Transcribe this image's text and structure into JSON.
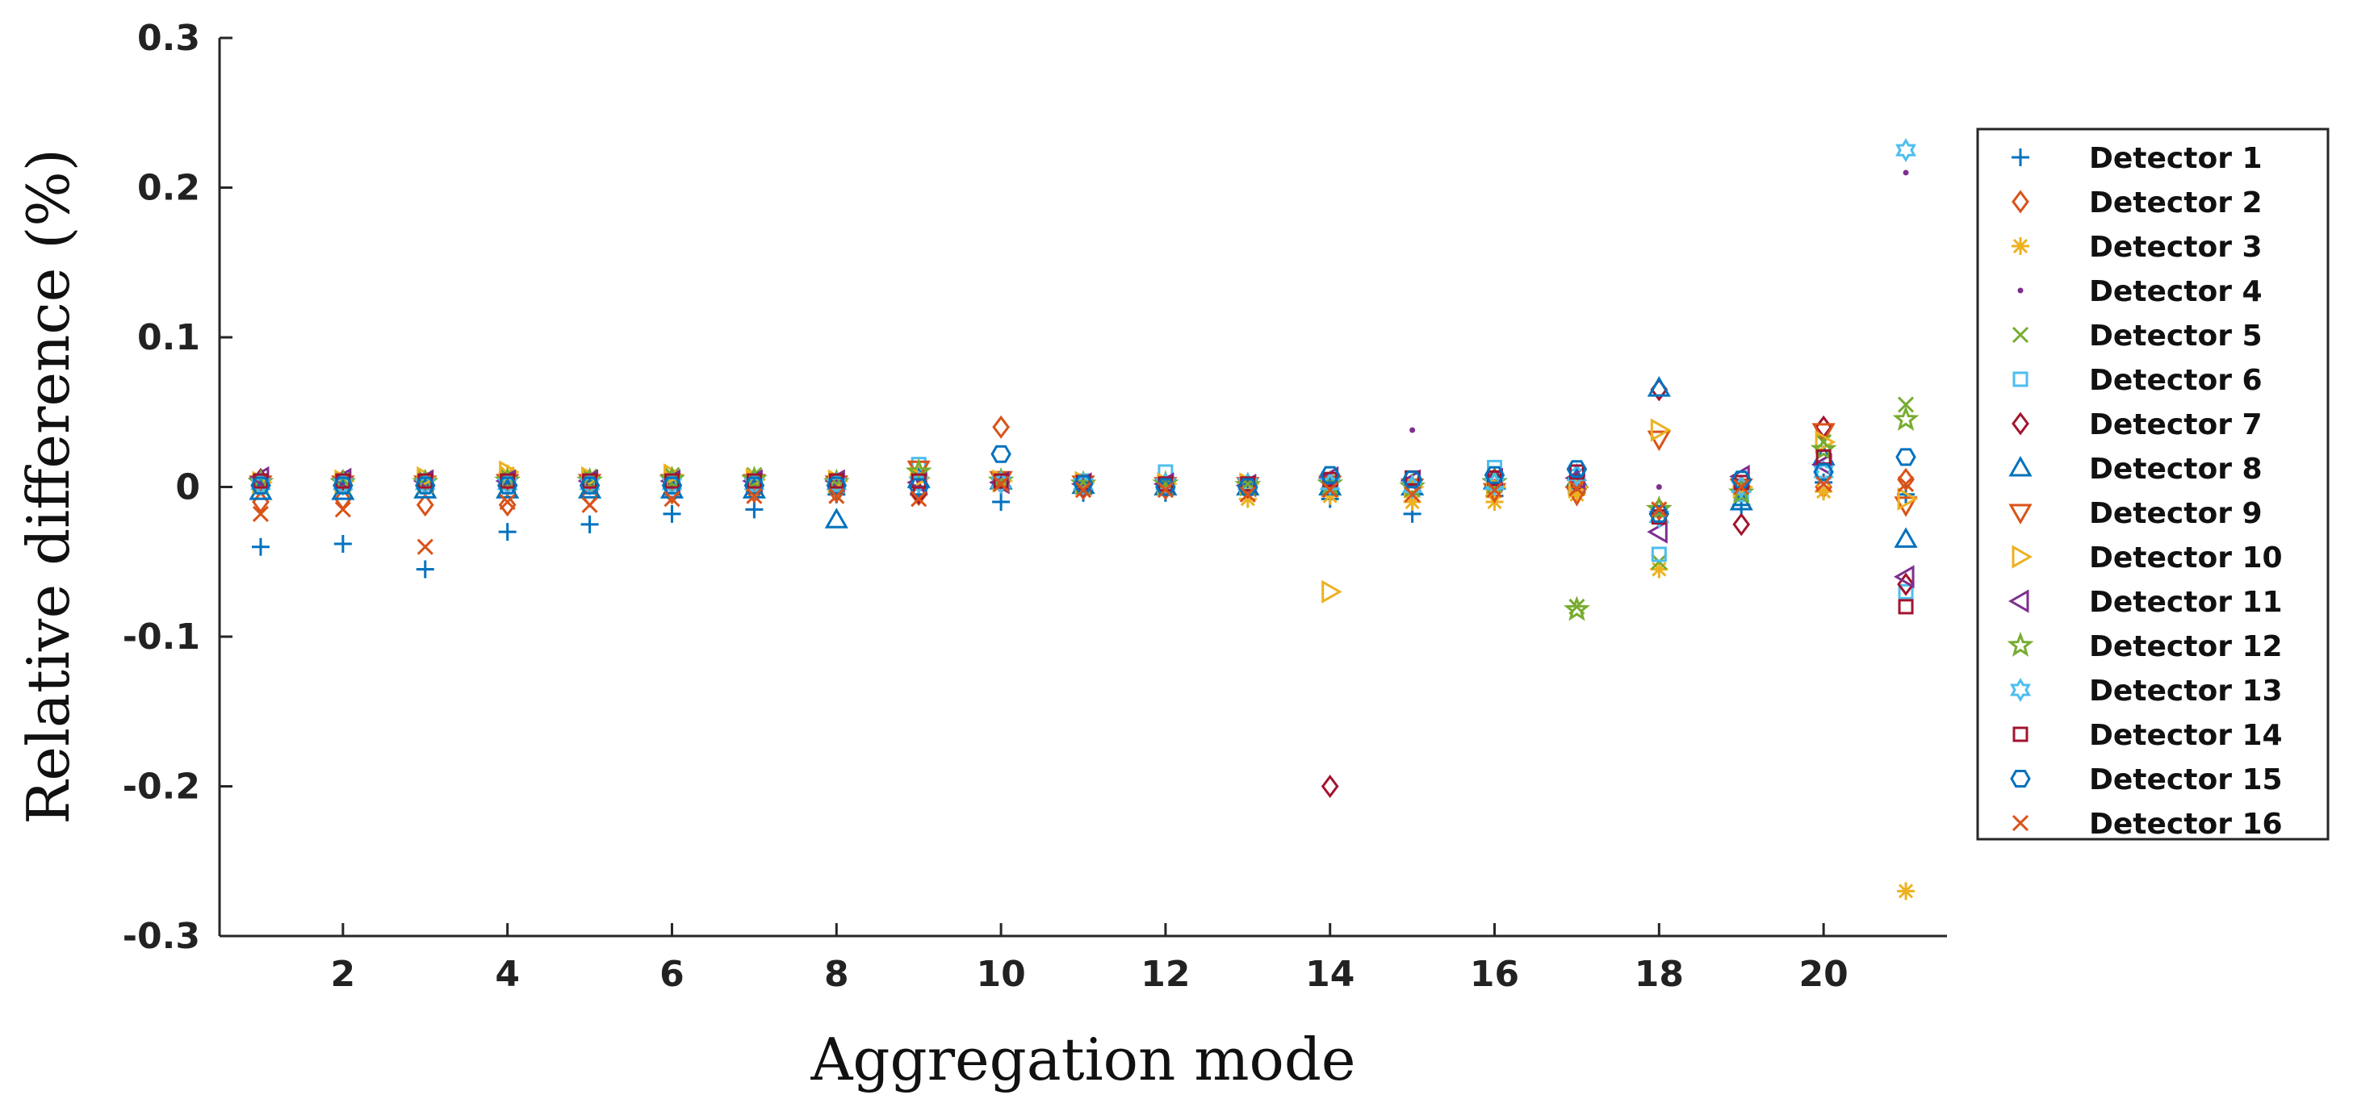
{
  "chart_data": {
    "type": "scatter",
    "xlabel": "Aggregation mode",
    "ylabel": "Relative difference (%)",
    "xlim": [
      0.5,
      21.5
    ],
    "ylim": [
      -0.3,
      0.3
    ],
    "x_ticks": [
      2,
      4,
      6,
      8,
      10,
      12,
      14,
      16,
      18,
      20
    ],
    "x_tick_labels": [
      "2",
      "4",
      "6",
      "8",
      "10",
      "12",
      "14",
      "16",
      "18",
      "20"
    ],
    "y_ticks": [
      -0.3,
      -0.2,
      -0.1,
      0,
      0.1,
      0.2,
      0.3
    ],
    "y_tick_labels": [
      "-0.3",
      "-0.2",
      "-0.1",
      "0",
      "0.1",
      "0.2",
      "0.3"
    ],
    "grid": false,
    "legend_position": "right",
    "x": [
      1,
      2,
      3,
      4,
      5,
      6,
      7,
      8,
      9,
      10,
      11,
      12,
      13,
      14,
      15,
      16,
      17,
      18,
      19,
      20,
      21
    ],
    "series": [
      {
        "name": "Detector 1",
        "marker": "plus",
        "color": "#0072BD",
        "values": [
          -0.04,
          -0.038,
          -0.055,
          -0.03,
          -0.025,
          -0.018,
          -0.015,
          -0.005,
          -0.005,
          -0.01,
          -0.004,
          -0.004,
          -0.004,
          -0.008,
          -0.018,
          -0.006,
          -0.004,
          -0.018,
          -0.012,
          0.003,
          -0.005
        ]
      },
      {
        "name": "Detector 2",
        "marker": "diamond",
        "color": "#D95319",
        "values": [
          -0.01,
          -0.008,
          -0.012,
          -0.012,
          -0.006,
          -0.004,
          -0.003,
          -0.003,
          -0.005,
          0.04,
          -0.001,
          -0.001,
          -0.001,
          0.0,
          0.0,
          -0.002,
          0.0,
          -0.015,
          0.0,
          0.0,
          0.005
        ]
      },
      {
        "name": "Detector 3",
        "marker": "asterisk",
        "color": "#EDB120",
        "values": [
          0.002,
          0.003,
          0.005,
          0.009,
          0.005,
          0.006,
          0.006,
          0.004,
          0.008,
          0.004,
          0.002,
          0.002,
          -0.008,
          -0.006,
          -0.01,
          -0.01,
          -0.005,
          -0.055,
          0.0,
          -0.003,
          -0.27
        ]
      },
      {
        "name": "Detector 4",
        "marker": "dot",
        "color": "#7E2F8E",
        "values": [
          0.002,
          0.003,
          0.003,
          0.003,
          0.003,
          0.003,
          0.003,
          0.003,
          0.004,
          0.004,
          0.002,
          0.002,
          0.002,
          0.003,
          0.038,
          0.003,
          0.003,
          0.0,
          0.003,
          0.004,
          0.21
        ]
      },
      {
        "name": "Detector 5",
        "marker": "x",
        "color": "#77AC30",
        "values": [
          0.004,
          0.005,
          0.006,
          0.007,
          0.007,
          0.008,
          0.008,
          0.002,
          0.009,
          0.005,
          0.003,
          0.002,
          0.002,
          0.004,
          0.002,
          0.003,
          -0.08,
          -0.05,
          -0.005,
          0.03,
          0.055
        ]
      },
      {
        "name": "Detector 6",
        "marker": "square",
        "color": "#4DBEEE",
        "values": [
          0.002,
          0.002,
          0.003,
          0.003,
          0.003,
          0.003,
          0.002,
          0.002,
          0.015,
          0.004,
          0.004,
          0.01,
          0.002,
          0.003,
          0.0,
          0.013,
          0.003,
          -0.045,
          -0.005,
          0.01,
          -0.07
        ]
      },
      {
        "name": "Detector 7",
        "marker": "diamond",
        "color": "#A2142F",
        "values": [
          0.005,
          0.004,
          0.003,
          0.004,
          0.003,
          0.003,
          0.003,
          0.002,
          -0.004,
          0.003,
          0.001,
          0.001,
          0.0,
          -0.2,
          0.0,
          0.005,
          0.003,
          0.065,
          -0.025,
          0.04,
          -0.065
        ]
      },
      {
        "name": "Detector 8",
        "marker": "triangle-up",
        "color": "#0072BD",
        "values": [
          -0.003,
          -0.003,
          -0.002,
          -0.002,
          -0.002,
          -0.002,
          -0.002,
          -0.022,
          0.005,
          0.004,
          0.001,
          0.0,
          0.0,
          0.0,
          0.0,
          0.004,
          0.005,
          0.066,
          -0.01,
          0.02,
          -0.035
        ]
      },
      {
        "name": "Detector 9",
        "marker": "triangle-down",
        "color": "#D95319",
        "values": [
          0.002,
          0.002,
          0.002,
          0.003,
          0.003,
          0.003,
          0.003,
          0.002,
          0.012,
          0.005,
          0.002,
          0.001,
          0.001,
          0.002,
          0.0,
          -0.003,
          -0.005,
          0.032,
          0.0,
          0.037,
          -0.012
        ]
      },
      {
        "name": "Detector 10",
        "marker": "triangle-right",
        "color": "#EDB120",
        "values": [
          0.003,
          0.004,
          0.006,
          0.01,
          0.006,
          0.008,
          0.005,
          0.004,
          0.006,
          0.004,
          0.003,
          0.002,
          0.002,
          -0.07,
          0.0,
          0.0,
          0.0,
          0.038,
          0.0,
          0.03,
          -0.008
        ]
      },
      {
        "name": "Detector 11",
        "marker": "triangle-left",
        "color": "#7E2F8E",
        "values": [
          0.006,
          0.005,
          0.004,
          0.004,
          0.004,
          0.004,
          0.004,
          0.004,
          0.003,
          0.003,
          0.002,
          0.002,
          0.001,
          0.006,
          0.004,
          0.005,
          0.006,
          -0.03,
          0.007,
          0.015,
          -0.06
        ]
      },
      {
        "name": "Detector 12",
        "marker": "pentagram",
        "color": "#77AC30",
        "values": [
          0.003,
          0.003,
          0.003,
          0.004,
          0.004,
          0.005,
          0.005,
          0.003,
          0.01,
          0.004,
          0.002,
          0.002,
          0.001,
          0.002,
          0.0,
          0.003,
          -0.082,
          -0.015,
          -0.004,
          0.025,
          0.045
        ]
      },
      {
        "name": "Detector 13",
        "marker": "hexagram",
        "color": "#4DBEEE",
        "values": [
          0.002,
          0.002,
          0.002,
          0.002,
          0.002,
          0.002,
          0.002,
          0.002,
          0.003,
          0.003,
          0.002,
          0.002,
          0.002,
          0.002,
          0.0,
          0.002,
          0.008,
          -0.02,
          0.0,
          0.01,
          0.225
        ]
      },
      {
        "name": "Detector 14",
        "marker": "square",
        "color": "#A2142F",
        "values": [
          0.004,
          0.004,
          0.004,
          0.004,
          0.004,
          0.004,
          0.004,
          0.004,
          0.004,
          0.004,
          0.003,
          0.002,
          0.002,
          0.005,
          0.006,
          0.006,
          0.01,
          -0.02,
          0.003,
          0.02,
          -0.08
        ]
      },
      {
        "name": "Detector 15",
        "marker": "hexagon",
        "color": "#0072BD",
        "values": [
          0.001,
          0.001,
          0.001,
          0.001,
          0.001,
          0.001,
          0.001,
          0.001,
          0.0,
          0.022,
          0.002,
          0.0,
          0.0,
          0.008,
          0.005,
          0.008,
          0.012,
          -0.018,
          0.005,
          0.01,
          0.02
        ]
      },
      {
        "name": "Detector 16",
        "marker": "x",
        "color": "#D95319",
        "values": [
          -0.018,
          -0.015,
          -0.04,
          -0.01,
          -0.012,
          -0.008,
          -0.006,
          -0.006,
          -0.008,
          0.002,
          -0.002,
          -0.002,
          -0.005,
          -0.002,
          -0.005,
          -0.002,
          -0.001,
          -0.015,
          0.0,
          0.002,
          0.002
        ]
      }
    ]
  }
}
